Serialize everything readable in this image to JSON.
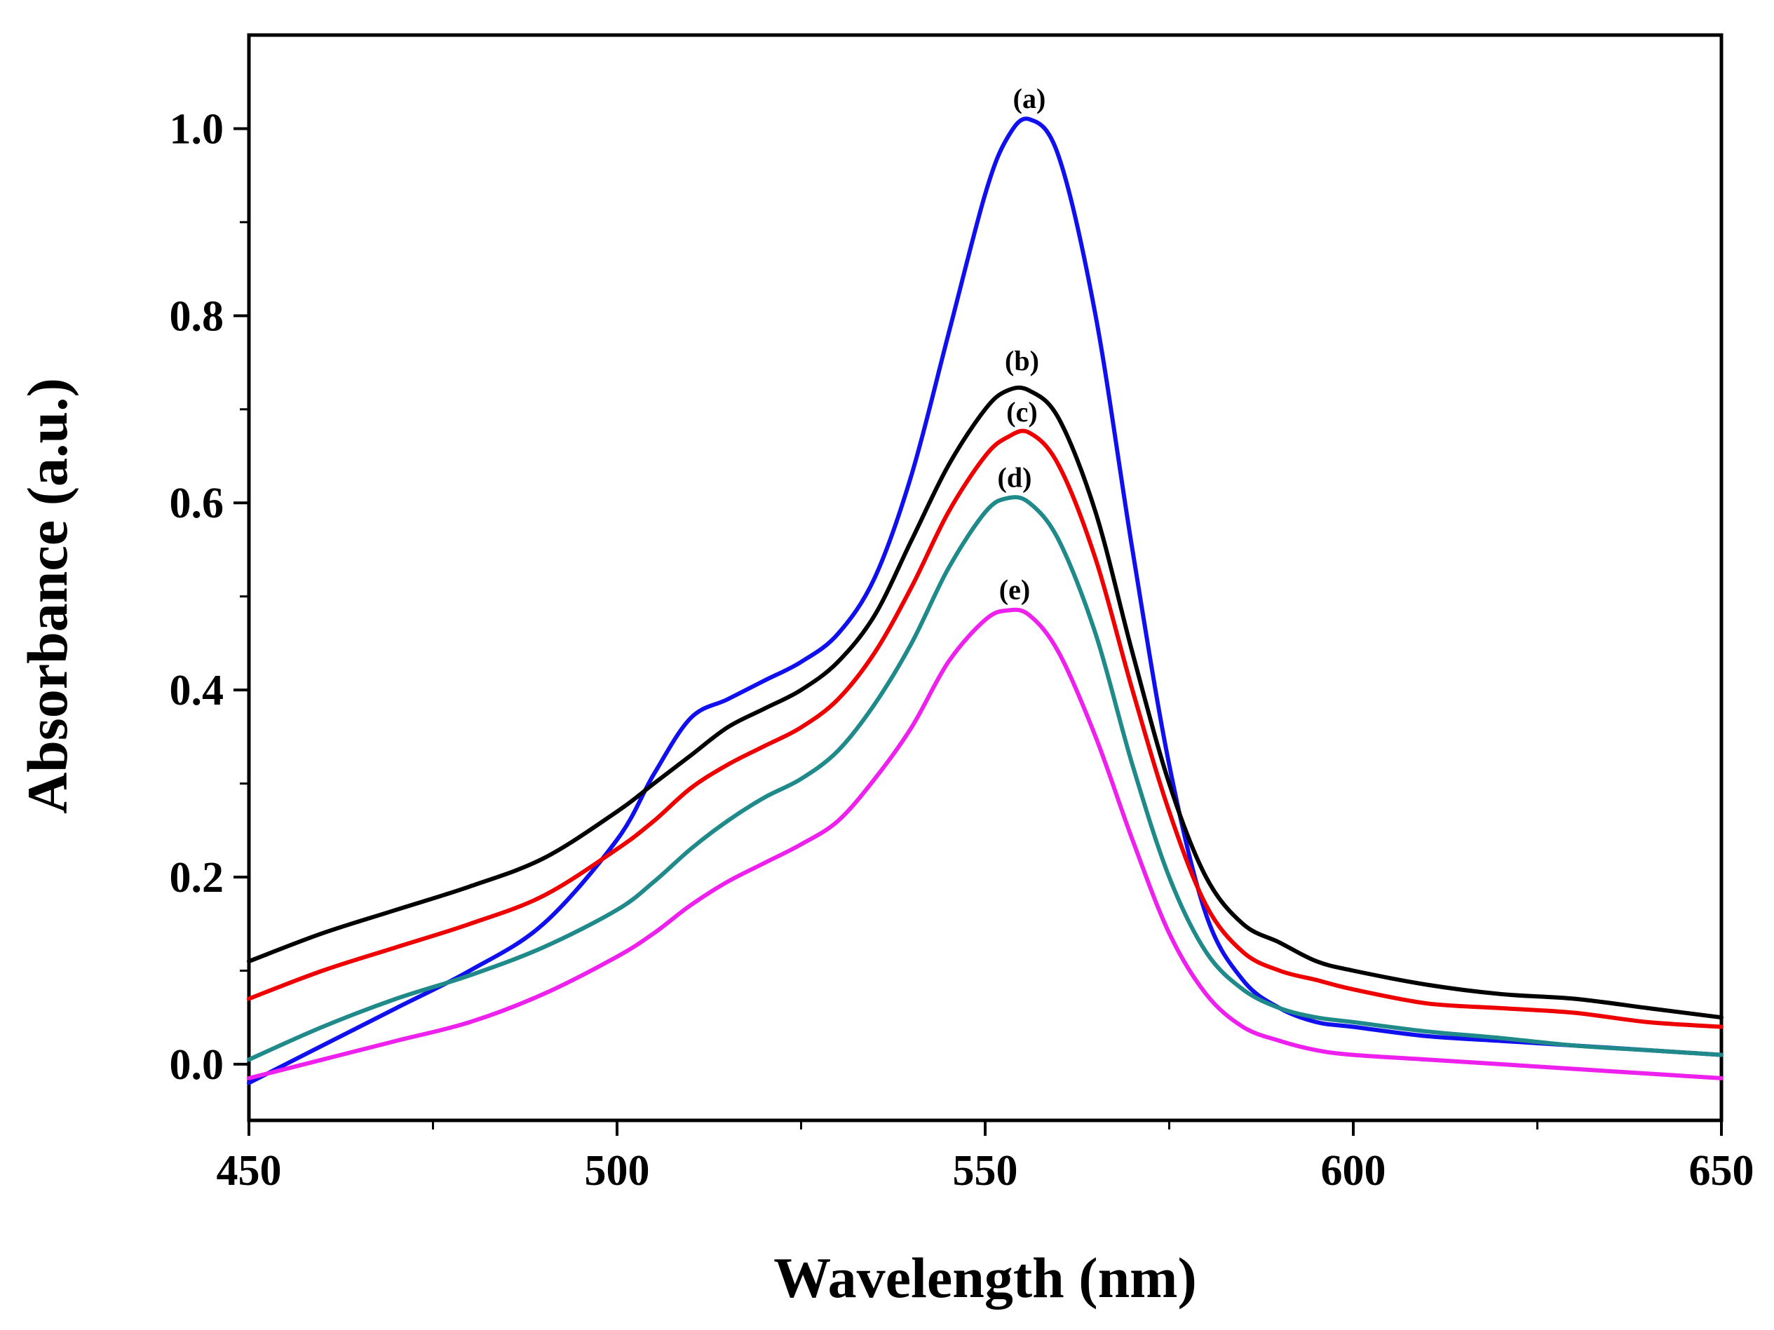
{
  "chart_data": {
    "type": "line",
    "title": "",
    "xlabel": "Wavelength (nm)",
    "ylabel": "Absorbance (a.u.)",
    "xlim": [
      450,
      650
    ],
    "ylim": [
      -0.06,
      1.1
    ],
    "xticks": [
      450,
      500,
      550,
      600,
      650
    ],
    "xtick_labels": [
      "450",
      "500",
      "550",
      "600",
      "650"
    ],
    "yticks": [
      0.0,
      0.2,
      0.4,
      0.6,
      0.8,
      1.0
    ],
    "ytick_labels": [
      "0.0",
      "0.2",
      "0.4",
      "0.6",
      "0.8",
      "1.0"
    ],
    "grid": false,
    "legend": "none",
    "x": [
      450,
      460,
      470,
      480,
      490,
      500,
      505,
      510,
      515,
      520,
      525,
      530,
      535,
      540,
      545,
      550,
      553,
      556,
      560,
      565,
      570,
      575,
      580,
      585,
      590,
      595,
      600,
      610,
      620,
      630,
      640,
      650
    ],
    "series": [
      {
        "name": "(a)",
        "label": "(a)",
        "color": "#1010ee",
        "peak": [
          556,
          1.01
        ],
        "values": [
          -0.02,
          0.02,
          0.06,
          0.1,
          0.15,
          0.24,
          0.31,
          0.37,
          0.39,
          0.41,
          0.43,
          0.46,
          0.52,
          0.63,
          0.78,
          0.93,
          0.99,
          1.01,
          0.97,
          0.8,
          0.55,
          0.32,
          0.16,
          0.09,
          0.06,
          0.045,
          0.04,
          0.03,
          0.025,
          0.02,
          0.015,
          0.01
        ]
      },
      {
        "name": "(b)",
        "label": "(b)",
        "color": "#000000",
        "peak": [
          555,
          0.73
        ],
        "values": [
          0.11,
          0.14,
          0.165,
          0.19,
          0.22,
          0.27,
          0.3,
          0.33,
          0.36,
          0.38,
          0.4,
          0.43,
          0.48,
          0.56,
          0.64,
          0.7,
          0.72,
          0.72,
          0.69,
          0.59,
          0.44,
          0.3,
          0.2,
          0.15,
          0.13,
          0.11,
          0.1,
          0.085,
          0.075,
          0.07,
          0.06,
          0.05
        ]
      },
      {
        "name": "(c)",
        "label": "(c)",
        "color": "#ee0000",
        "peak": [
          555,
          0.675
        ],
        "values": [
          0.07,
          0.1,
          0.125,
          0.15,
          0.18,
          0.23,
          0.26,
          0.295,
          0.32,
          0.34,
          0.36,
          0.39,
          0.44,
          0.51,
          0.59,
          0.65,
          0.67,
          0.675,
          0.64,
          0.54,
          0.4,
          0.27,
          0.17,
          0.12,
          0.1,
          0.09,
          0.08,
          0.065,
          0.06,
          0.055,
          0.045,
          0.04
        ]
      },
      {
        "name": "(d)",
        "label": "(d)",
        "color": "#208a8a",
        "peak": [
          554,
          0.605
        ],
        "values": [
          0.005,
          0.04,
          0.07,
          0.095,
          0.125,
          0.165,
          0.195,
          0.23,
          0.26,
          0.285,
          0.305,
          0.335,
          0.385,
          0.45,
          0.53,
          0.59,
          0.605,
          0.6,
          0.56,
          0.46,
          0.32,
          0.2,
          0.12,
          0.08,
          0.06,
          0.05,
          0.045,
          0.035,
          0.028,
          0.02,
          0.015,
          0.01
        ]
      },
      {
        "name": "(e)",
        "label": "(e)",
        "color": "#ee20ee",
        "peak": [
          554,
          0.485
        ],
        "values": [
          -0.015,
          0.005,
          0.025,
          0.045,
          0.075,
          0.115,
          0.14,
          0.17,
          0.195,
          0.215,
          0.235,
          0.26,
          0.305,
          0.36,
          0.43,
          0.475,
          0.485,
          0.48,
          0.44,
          0.35,
          0.24,
          0.14,
          0.075,
          0.04,
          0.025,
          0.015,
          0.01,
          0.005,
          0.0,
          -0.005,
          -0.01,
          -0.015
        ]
      }
    ]
  }
}
